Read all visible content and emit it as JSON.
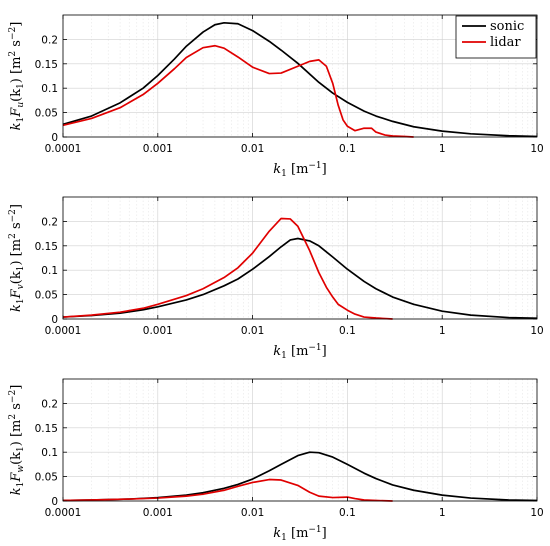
{
  "chart_data": [
    {
      "type": "line",
      "x_scale": "log",
      "xlim": [
        0.0001,
        10
      ],
      "ylim": [
        0,
        0.25
      ],
      "xticks": [
        "0.0001",
        "0.001",
        "0.01",
        "0.1",
        "1",
        "10"
      ],
      "yticks": [
        "0",
        "0.05",
        "0.1",
        "0.15",
        "0.2"
      ],
      "xlabel": {
        "main": "k",
        "sub": "1",
        "unit": " [m",
        "unit_sup": "−1",
        "close": "]"
      },
      "ylabel": {
        "k": "k",
        "k_sub": "1",
        "F": "F",
        "F_sub": "u",
        "arg": "(k",
        "arg_sub": "1",
        "arg_close": ")",
        "unit": "[m",
        "unit_sup1": "2",
        "unit_mid": " s",
        "unit_sup2": "−2",
        "unit_close": "]"
      },
      "grid": true,
      "legend": {
        "placement": "top-right",
        "entries": [
          "sonic",
          "lidar"
        ]
      },
      "series": [
        {
          "name": "sonic",
          "color": "#000000",
          "x": [
            0.0001,
            0.0002,
            0.0004,
            0.0007,
            0.001,
            0.0015,
            0.002,
            0.003,
            0.004,
            0.005,
            0.007,
            0.01,
            0.015,
            0.02,
            0.03,
            0.05,
            0.07,
            0.1,
            0.15,
            0.2,
            0.3,
            0.5,
            1,
            2,
            5,
            10
          ],
          "y": [
            0.026,
            0.043,
            0.07,
            0.1,
            0.126,
            0.16,
            0.186,
            0.215,
            0.23,
            0.234,
            0.232,
            0.218,
            0.196,
            0.178,
            0.151,
            0.112,
            0.09,
            0.071,
            0.053,
            0.043,
            0.032,
            0.021,
            0.012,
            0.0065,
            0.0025,
            0.001
          ]
        },
        {
          "name": "lidar",
          "color": "#e00000",
          "x": [
            0.0001,
            0.0002,
            0.0004,
            0.0007,
            0.001,
            0.0015,
            0.002,
            0.003,
            0.004,
            0.005,
            0.007,
            0.01,
            0.015,
            0.02,
            0.03,
            0.04,
            0.05,
            0.06,
            0.07,
            0.08,
            0.09,
            0.1,
            0.12,
            0.15,
            0.18,
            0.2,
            0.25,
            0.3,
            0.4,
            0.5
          ],
          "y": [
            0.024,
            0.038,
            0.06,
            0.087,
            0.11,
            0.14,
            0.163,
            0.183,
            0.187,
            0.182,
            0.164,
            0.143,
            0.13,
            0.131,
            0.145,
            0.155,
            0.158,
            0.145,
            0.11,
            0.065,
            0.035,
            0.022,
            0.013,
            0.018,
            0.018,
            0.01,
            0.004,
            0.002,
            0.001,
            0.0
          ]
        }
      ]
    },
    {
      "type": "line",
      "x_scale": "log",
      "xlim": [
        0.0001,
        10
      ],
      "ylim": [
        0,
        0.25
      ],
      "xticks": [
        "0.0001",
        "0.001",
        "0.01",
        "0.1",
        "1",
        "10"
      ],
      "yticks": [
        "0",
        "0.05",
        "0.1",
        "0.15",
        "0.2"
      ],
      "xlabel": {
        "main": "k",
        "sub": "1",
        "unit": " [m",
        "unit_sup": "−1",
        "close": "]"
      },
      "ylabel": {
        "k": "k",
        "k_sub": "1",
        "F": "F",
        "F_sub": "v",
        "arg": "(k",
        "arg_sub": "1",
        "arg_close": ")",
        "unit": "[m",
        "unit_sup1": "2",
        "unit_mid": " s",
        "unit_sup2": "−2",
        "unit_close": "]"
      },
      "grid": true,
      "series": [
        {
          "name": "sonic",
          "color": "#000000",
          "x": [
            0.0001,
            0.0002,
            0.0004,
            0.0007,
            0.001,
            0.002,
            0.003,
            0.005,
            0.007,
            0.01,
            0.015,
            0.02,
            0.025,
            0.03,
            0.04,
            0.05,
            0.07,
            0.1,
            0.15,
            0.2,
            0.3,
            0.5,
            1,
            2,
            5,
            10
          ],
          "y": [
            0.004,
            0.007,
            0.012,
            0.019,
            0.025,
            0.039,
            0.05,
            0.068,
            0.082,
            0.102,
            0.128,
            0.148,
            0.162,
            0.165,
            0.16,
            0.15,
            0.127,
            0.102,
            0.077,
            0.062,
            0.045,
            0.03,
            0.016,
            0.008,
            0.003,
            0.0015
          ]
        },
        {
          "name": "lidar",
          "color": "#e00000",
          "x": [
            0.0001,
            0.0002,
            0.0004,
            0.0007,
            0.001,
            0.002,
            0.003,
            0.005,
            0.007,
            0.01,
            0.015,
            0.02,
            0.025,
            0.03,
            0.04,
            0.05,
            0.06,
            0.07,
            0.08,
            0.1,
            0.12,
            0.15,
            0.2,
            0.3
          ],
          "y": [
            0.004,
            0.008,
            0.014,
            0.022,
            0.03,
            0.048,
            0.062,
            0.085,
            0.105,
            0.135,
            0.18,
            0.206,
            0.205,
            0.19,
            0.14,
            0.095,
            0.065,
            0.045,
            0.03,
            0.018,
            0.01,
            0.004,
            0.002,
            0.0
          ]
        }
      ]
    },
    {
      "type": "line",
      "x_scale": "log",
      "xlim": [
        0.0001,
        10
      ],
      "ylim": [
        0,
        0.25
      ],
      "xticks": [
        "0.0001",
        "0.001",
        "0.01",
        "0.1",
        "1",
        "10"
      ],
      "yticks": [
        "0",
        "0.05",
        "0.1",
        "0.15",
        "0.2"
      ],
      "xlabel": {
        "main": "k",
        "sub": "1",
        "unit": " [m",
        "unit_sup": "−1",
        "close": "]"
      },
      "ylabel": {
        "k": "k",
        "k_sub": "1",
        "F": "F",
        "F_sub": "w",
        "arg": "(k",
        "arg_sub": "1",
        "arg_close": ")",
        "unit": "[m",
        "unit_sup1": "2",
        "unit_mid": " s",
        "unit_sup2": "−2",
        "unit_close": "]"
      },
      "grid": true,
      "series": [
        {
          "name": "sonic",
          "color": "#000000",
          "x": [
            0.0001,
            0.0002,
            0.0005,
            0.001,
            0.002,
            0.003,
            0.005,
            0.007,
            0.01,
            0.015,
            0.02,
            0.03,
            0.04,
            0.05,
            0.07,
            0.1,
            0.15,
            0.2,
            0.3,
            0.5,
            1,
            2,
            5,
            10
          ],
          "y": [
            0.001,
            0.002,
            0.004,
            0.007,
            0.012,
            0.017,
            0.026,
            0.034,
            0.045,
            0.062,
            0.075,
            0.093,
            0.1,
            0.099,
            0.09,
            0.075,
            0.057,
            0.046,
            0.033,
            0.022,
            0.012,
            0.006,
            0.002,
            0.001
          ]
        },
        {
          "name": "lidar",
          "color": "#e00000",
          "x": [
            0.0001,
            0.0002,
            0.0005,
            0.001,
            0.002,
            0.003,
            0.005,
            0.007,
            0.01,
            0.015,
            0.02,
            0.03,
            0.04,
            0.05,
            0.07,
            0.1,
            0.12,
            0.15,
            0.2,
            0.3
          ],
          "y": [
            0.001,
            0.002,
            0.004,
            0.006,
            0.01,
            0.014,
            0.022,
            0.03,
            0.038,
            0.044,
            0.043,
            0.032,
            0.018,
            0.01,
            0.007,
            0.008,
            0.005,
            0.002,
            0.001,
            0.0
          ]
        }
      ]
    }
  ]
}
